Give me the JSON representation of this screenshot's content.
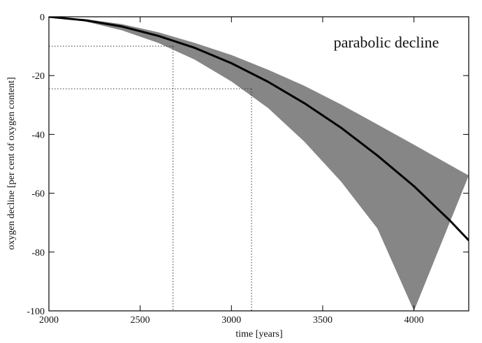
{
  "chart_data": {
    "type": "line",
    "title": "",
    "xlabel": "time [years]",
    "ylabel": "oxygen decline [per cent of oxygen content]",
    "xlim": [
      2000,
      4300
    ],
    "ylim": [
      -100,
      0
    ],
    "x_ticks": [
      2000,
      2500,
      3000,
      3500,
      4000
    ],
    "y_ticks": [
      0,
      -20,
      -40,
      -60,
      -80,
      -100
    ],
    "annotation": "parabolic decline",
    "grid": false,
    "series": [
      {
        "role": "central",
        "color": "#000000",
        "x": [
          2000,
          2200,
          2400,
          2600,
          2800,
          3000,
          3200,
          3400,
          3600,
          3800,
          4000,
          4200,
          4300
        ],
        "y": [
          0,
          -1.2,
          -3.3,
          -6.5,
          -10.6,
          -15.8,
          -22.1,
          -29.4,
          -37.7,
          -47.2,
          -57.6,
          -69.5,
          -76
        ]
      },
      {
        "role": "band-upper",
        "color": "#808080",
        "x": [
          2000,
          2200,
          2400,
          2600,
          2800,
          3000,
          3200,
          3400,
          3600,
          3800,
          4000,
          4200,
          4300
        ],
        "y": [
          0,
          -0.8,
          -2.5,
          -5.3,
          -8.9,
          -13.0,
          -18.0,
          -23.5,
          -29.8,
          -36.6,
          -43.5,
          -50.5,
          -54
        ]
      },
      {
        "role": "band-lower",
        "color": "#808080",
        "x": [
          2000,
          2200,
          2400,
          2600,
          2800,
          3000,
          3200,
          3400,
          3600,
          3800,
          4000
        ],
        "y": [
          0,
          -1.6,
          -4.6,
          -8.9,
          -14.6,
          -22.0,
          -31.0,
          -42.5,
          -56.0,
          -72.0,
          -100
        ]
      }
    ],
    "reference_lines": [
      {
        "x": 2680,
        "y": -10
      },
      {
        "x": 3110,
        "y": -24.5
      }
    ]
  }
}
